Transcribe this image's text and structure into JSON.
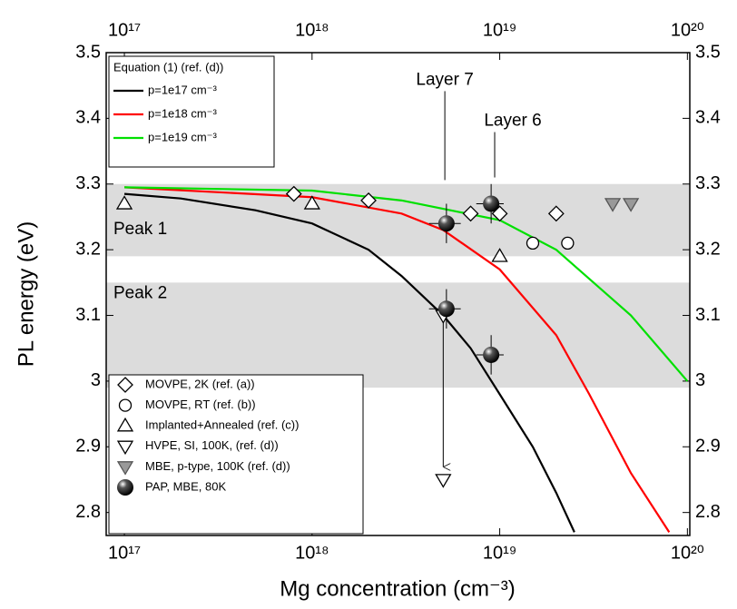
{
  "chart_data": {
    "type": "scatter",
    "x_label": "Mg concentration (cm⁻³)",
    "y_label": "PL energy (eV)",
    "xscale": "log",
    "xlim": [
      8e+16,
      1.03e+20
    ],
    "ylim": [
      2.765,
      3.5
    ],
    "xticks": [
      {
        "value": 1e+17,
        "label": "10¹⁷"
      },
      {
        "value": 1e+18,
        "label": "10¹⁸"
      },
      {
        "value": 1e+19,
        "label": "10¹⁹"
      },
      {
        "value": 1e+20,
        "label": "10²⁰"
      }
    ],
    "yticks": [
      2.8,
      2.9,
      3,
      3.1,
      3.2,
      3.3,
      3.4,
      3.5
    ],
    "bands": [
      {
        "label": "Peak 1",
        "range": [
          3.19,
          3.3
        ]
      },
      {
        "label": "Peak 2",
        "range": [
          2.99,
          3.15
        ]
      }
    ],
    "annotations": [
      {
        "text": "Layer 7",
        "x": 5.1e+18,
        "y": 3.306
      },
      {
        "text": "Layer 6",
        "x": 9.4e+18,
        "y": 3.31
      }
    ],
    "line_legend_title": "Equation (1) (ref. (d))",
    "series": [
      {
        "name": "p=1e17 cm⁻³",
        "type": "line",
        "color": "#000000",
        "x": [
          1e+17,
          2e+17,
          5e+17,
          1e+18,
          2e+18,
          3e+18,
          5e+18,
          7e+18,
          1e+19,
          1.5e+19,
          2e+19,
          2.5e+19
        ],
        "values": [
          3.285,
          3.278,
          3.26,
          3.24,
          3.2,
          3.16,
          3.1,
          3.05,
          2.98,
          2.9,
          2.83,
          2.77
        ]
      },
      {
        "name": "p=1e18 cm⁻³",
        "type": "line",
        "color": "#ff0000",
        "x": [
          1e+17,
          1e+18,
          3e+18,
          5e+18,
          1e+19,
          2e+19,
          3e+19,
          5e+19,
          8e+19
        ],
        "values": [
          3.295,
          3.28,
          3.255,
          3.23,
          3.17,
          3.07,
          2.98,
          2.86,
          2.77
        ]
      },
      {
        "name": "p=1e19 cm⁻³",
        "type": "line",
        "color": "#00e000",
        "x": [
          1e+17,
          1e+18,
          3e+18,
          1e+19,
          2e+19,
          5e+19,
          1e+20
        ],
        "values": [
          3.295,
          3.29,
          3.275,
          3.245,
          3.2,
          3.1,
          3.0
        ]
      },
      {
        "name": "MOVPE, 2K (ref. (a))",
        "type": "scatter",
        "marker": "diamond",
        "color": "#000000",
        "fill": "#ffffff",
        "x": [
          8e+17,
          2e+18,
          7e+18,
          1e+19,
          2e+19
        ],
        "values": [
          3.285,
          3.275,
          3.255,
          3.255,
          3.255
        ]
      },
      {
        "name": "MOVPE, RT (ref. (b))",
        "type": "scatter",
        "marker": "circle",
        "color": "#000000",
        "fill": "#ffffff",
        "x": [
          1.5e+19,
          2.3e+19
        ],
        "values": [
          3.21,
          3.21
        ]
      },
      {
        "name": "Implanted+Annealed (ref. (c))",
        "type": "scatter",
        "marker": "triangle-up",
        "color": "#000000",
        "fill": "#ffffff",
        "x": [
          1e+17,
          1e+18,
          1e+19
        ],
        "values": [
          3.27,
          3.27,
          3.19
        ]
      },
      {
        "name": "HVPE, SI, 100K, (ref. (d))",
        "type": "scatter",
        "marker": "triangle-down",
        "color": "#000000",
        "fill": "#ffffff",
        "x": [
          5e+18,
          5e+18
        ],
        "values": [
          3.1,
          2.85
        ]
      },
      {
        "name": "MBE, p-type, 100K (ref. (d))",
        "type": "scatter",
        "marker": "triangle-down",
        "color": "#555555",
        "fill": "#999999",
        "x": [
          4e+19,
          5e+19
        ],
        "values": [
          3.27,
          3.27
        ]
      },
      {
        "name": "PAP, MBE, 80K",
        "type": "scatter",
        "marker": "sphere",
        "color": "#000000",
        "fill": "#000000",
        "x": [
          5.2e+18,
          9e+18,
          5.2e+18,
          9e+18
        ],
        "values": [
          3.24,
          3.27,
          3.11,
          3.04
        ],
        "xerr": [
          1e+18,
          1.5e+18,
          1e+18,
          1.5e+18
        ],
        "yerr": [
          0.03,
          0.03,
          0.03,
          0.03
        ]
      }
    ]
  }
}
